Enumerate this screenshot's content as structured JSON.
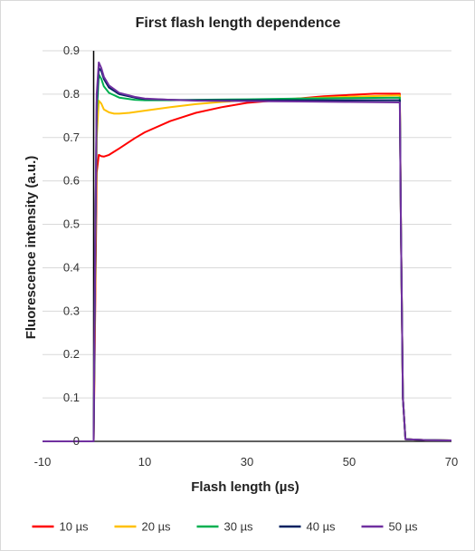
{
  "chart_data": {
    "type": "line",
    "title": "First flash length dependence",
    "xlabel": "Flash length (µs)",
    "ylabel": "Fluorescence intensity (a.u.)",
    "xlim": [
      -10,
      70
    ],
    "ylim": [
      0,
      0.9
    ],
    "x_ticks": [
      -10,
      10,
      30,
      50,
      70
    ],
    "y_ticks": [
      0,
      0.1,
      0.2,
      0.3,
      0.4,
      0.5,
      0.6,
      0.7,
      0.8,
      0.9
    ],
    "x_tick_labels": [
      "-10",
      "10",
      "30",
      "50",
      "70"
    ],
    "y_tick_labels": [
      "0",
      "0.1",
      "0.2",
      "0.3",
      "0.4",
      "0.5",
      "0.6",
      "0.7",
      "0.8",
      "0.9"
    ],
    "grid": "horizontal",
    "legend": "bottom",
    "series": [
      {
        "name": "10 µs",
        "color": "#ff0000",
        "x": [
          -10,
          0,
          0.3,
          0.6,
          1.0,
          1.5,
          2.0,
          3,
          5,
          8,
          10,
          15,
          20,
          25,
          30,
          35,
          40,
          45,
          50,
          55,
          59.9,
          60.1,
          60.5,
          61,
          65,
          70
        ],
        "y": [
          0,
          0,
          0.3,
          0.62,
          0.66,
          0.657,
          0.656,
          0.66,
          0.675,
          0.698,
          0.712,
          0.738,
          0.757,
          0.77,
          0.78,
          0.785,
          0.79,
          0.795,
          0.798,
          0.801,
          0.801,
          0.5,
          0.1,
          0.005,
          0.003,
          0.002
        ]
      },
      {
        "name": "20 µs",
        "color": "#ffc000",
        "x": [
          -10,
          0,
          0.3,
          0.6,
          1.0,
          1.5,
          2.0,
          3,
          4,
          5,
          7,
          10,
          15,
          20,
          25,
          30,
          40,
          50,
          59.9,
          60.1,
          60.5,
          61,
          65,
          70
        ],
        "y": [
          0,
          0,
          0.35,
          0.7,
          0.785,
          0.778,
          0.765,
          0.758,
          0.755,
          0.755,
          0.757,
          0.762,
          0.77,
          0.777,
          0.782,
          0.786,
          0.79,
          0.794,
          0.797,
          0.5,
          0.1,
          0.005,
          0.003,
          0.002
        ]
      },
      {
        "name": "30 µs",
        "color": "#00b050",
        "x": [
          -10,
          0,
          0.3,
          0.6,
          1.0,
          1.5,
          2.0,
          3,
          5,
          8,
          10,
          15,
          20,
          30,
          40,
          50,
          59.9,
          60.1,
          60.5,
          61,
          65,
          70
        ],
        "y": [
          0,
          0,
          0.4,
          0.75,
          0.845,
          0.835,
          0.818,
          0.803,
          0.792,
          0.787,
          0.786,
          0.786,
          0.787,
          0.788,
          0.79,
          0.791,
          0.792,
          0.5,
          0.1,
          0.005,
          0.003,
          0.002
        ]
      },
      {
        "name": "40 µs",
        "color": "#002060",
        "x": [
          -10,
          0,
          0.3,
          0.6,
          1.0,
          1.5,
          2.0,
          3,
          5,
          8,
          10,
          15,
          20,
          30,
          40,
          50,
          59.9,
          60.1,
          60.5,
          61,
          65,
          70
        ],
        "y": [
          0,
          0,
          0.42,
          0.78,
          0.86,
          0.853,
          0.835,
          0.815,
          0.8,
          0.792,
          0.789,
          0.787,
          0.786,
          0.786,
          0.786,
          0.786,
          0.786,
          0.5,
          0.1,
          0.005,
          0.003,
          0.002
        ]
      },
      {
        "name": "50 µs",
        "color": "#7030a0",
        "x": [
          -10,
          0,
          0.3,
          0.6,
          1.0,
          1.5,
          2.0,
          3,
          5,
          8,
          10,
          15,
          20,
          30,
          40,
          50,
          59.9,
          60.1,
          60.5,
          61,
          65,
          70
        ],
        "y": [
          0,
          0,
          0.45,
          0.8,
          0.873,
          0.86,
          0.84,
          0.82,
          0.803,
          0.794,
          0.79,
          0.787,
          0.785,
          0.784,
          0.783,
          0.782,
          0.781,
          0.5,
          0.1,
          0.005,
          0.003,
          0.002
        ]
      }
    ]
  }
}
